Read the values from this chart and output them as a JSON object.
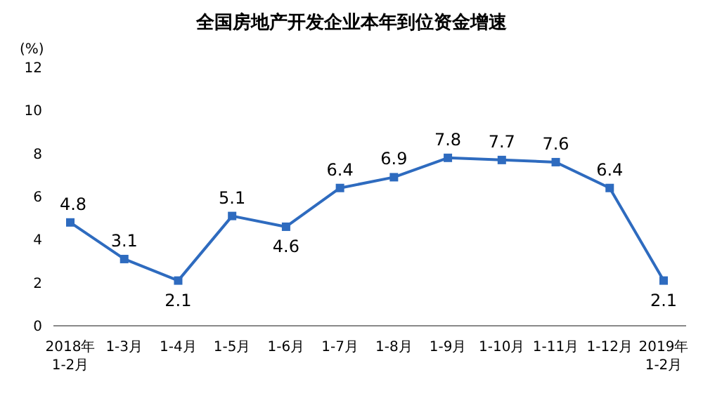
{
  "chart_data": {
    "type": "line",
    "title": "全国房地产开发企业本年到位资金增速",
    "ylabel": "(%)",
    "categories": [
      "2018年\n1-2月",
      "1-3月",
      "1-4月",
      "1-5月",
      "1-6月",
      "1-7月",
      "1-8月",
      "1-9月",
      "1-10月",
      "1-11月",
      "1-12月",
      "2019年\n1-2月"
    ],
    "series": [
      {
        "color": "#2e6bbf",
        "values": [
          4.8,
          3.1,
          2.1,
          5.1,
          4.6,
          6.4,
          6.9,
          7.8,
          7.7,
          7.6,
          6.4,
          2.1
        ]
      }
    ],
    "ylim": [
      0,
      12
    ],
    "yticks": [
      0,
      2,
      4,
      6,
      8,
      10,
      12
    ],
    "grid": false,
    "marker": "square",
    "line_style": "solid",
    "data_labels": true
  }
}
